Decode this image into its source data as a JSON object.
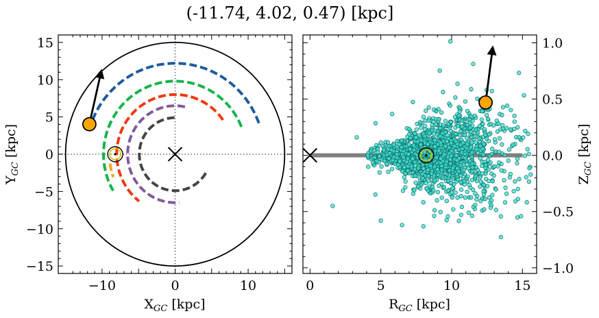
{
  "title": "(-11.74, 4.02, 0.47) [kpc]",
  "colors": {
    "sun_fill": "#ffa500",
    "scatter_fill": "#40e0d0",
    "scatter_edge": "#0e6b66",
    "midplane": "#808080",
    "arm_blue": "#1f5aa0",
    "arm_green": "#16b24b",
    "arm_red": "#ee3a12",
    "arm_purple": "#7f5a9e",
    "arm_dark": "#444444",
    "arm_orange": "#f5a623",
    "ring_yellow": "#d4c000"
  },
  "chart_data": [
    {
      "type": "scatter",
      "panel": "left",
      "xlabel": "X",
      "xlabel_sub": "GC",
      "xlabel_unit": " [kpc]",
      "ylabel": "Y",
      "ylabel_sub": "GC",
      "ylabel_unit": " [kpc]",
      "xlim": [
        -16,
        16
      ],
      "ylim": [
        -16,
        16
      ],
      "xticks": [
        -10,
        0,
        10
      ],
      "xtick_labels": [
        "−10",
        "0",
        "10"
      ],
      "yticks": [
        15,
        10,
        5,
        0,
        -5,
        -10,
        -15
      ],
      "ytick_labels": [
        "15",
        "10",
        "5",
        "0",
        "−5",
        "−10",
        "−15"
      ],
      "boundary_circle_radius": 15,
      "object_position": [
        -11.74,
        4.02
      ],
      "velocity_arrow_tip": [
        -10.1,
        11.2
      ],
      "sun_position": [
        -8.2,
        0.0
      ],
      "galactic_center_marker": [
        0,
        0
      ],
      "spiral_arms": [
        {
          "color": "arm_blue",
          "radius": 12.2,
          "angle_start": 20,
          "angle_end": 165
        },
        {
          "color": "arm_green",
          "radius": 9.8,
          "angle_start": 22,
          "angle_end": 210
        },
        {
          "color": "arm_red",
          "radius": 8.0,
          "angle_start": 35,
          "angle_end": 232
        },
        {
          "color": "arm_purple",
          "radius": 6.5,
          "angle_start": 78,
          "angle_end": 275
        },
        {
          "color": "arm_dark",
          "radius": 4.9,
          "angle_start": 91,
          "angle_end": 330
        },
        {
          "color": "arm_orange",
          "radius": 9.0,
          "angle_start": 188,
          "angle_end": 200
        }
      ]
    },
    {
      "type": "scatter",
      "panel": "right",
      "xlabel": "R",
      "xlabel_sub": "GC",
      "xlabel_unit": " [kpc]",
      "ylabel": "Z",
      "ylabel_sub": "GC",
      "ylabel_unit": " [kpc]",
      "xlim": [
        -0.5,
        16
      ],
      "ylim": [
        -1.05,
        1.07
      ],
      "xticks": [
        0,
        5,
        10,
        15
      ],
      "xtick_labels": [
        "0",
        "5",
        "10",
        "15"
      ],
      "yticks": [
        1.0,
        0.5,
        0.0,
        -0.5,
        -1.0
      ],
      "ytick_labels": [
        "1.0",
        "0.5",
        "0.0",
        "−0.5",
        "−1.0"
      ],
      "object_position": [
        12.4,
        0.47
      ],
      "velocity_arrow_tip": [
        12.9,
        0.96
      ],
      "sun_position": [
        8.2,
        0.0
      ],
      "galactic_center_marker": [
        0,
        0
      ],
      "midplane": {
        "x": [
          0,
          15
        ],
        "z": 0
      },
      "scatter_cloud": {
        "n_points": 1600,
        "r_min": 4.0,
        "r_max": 15.6,
        "r_peak": 8.5,
        "z_scale_base": 0.04,
        "z_scale_growth": 0.028
      }
    }
  ]
}
